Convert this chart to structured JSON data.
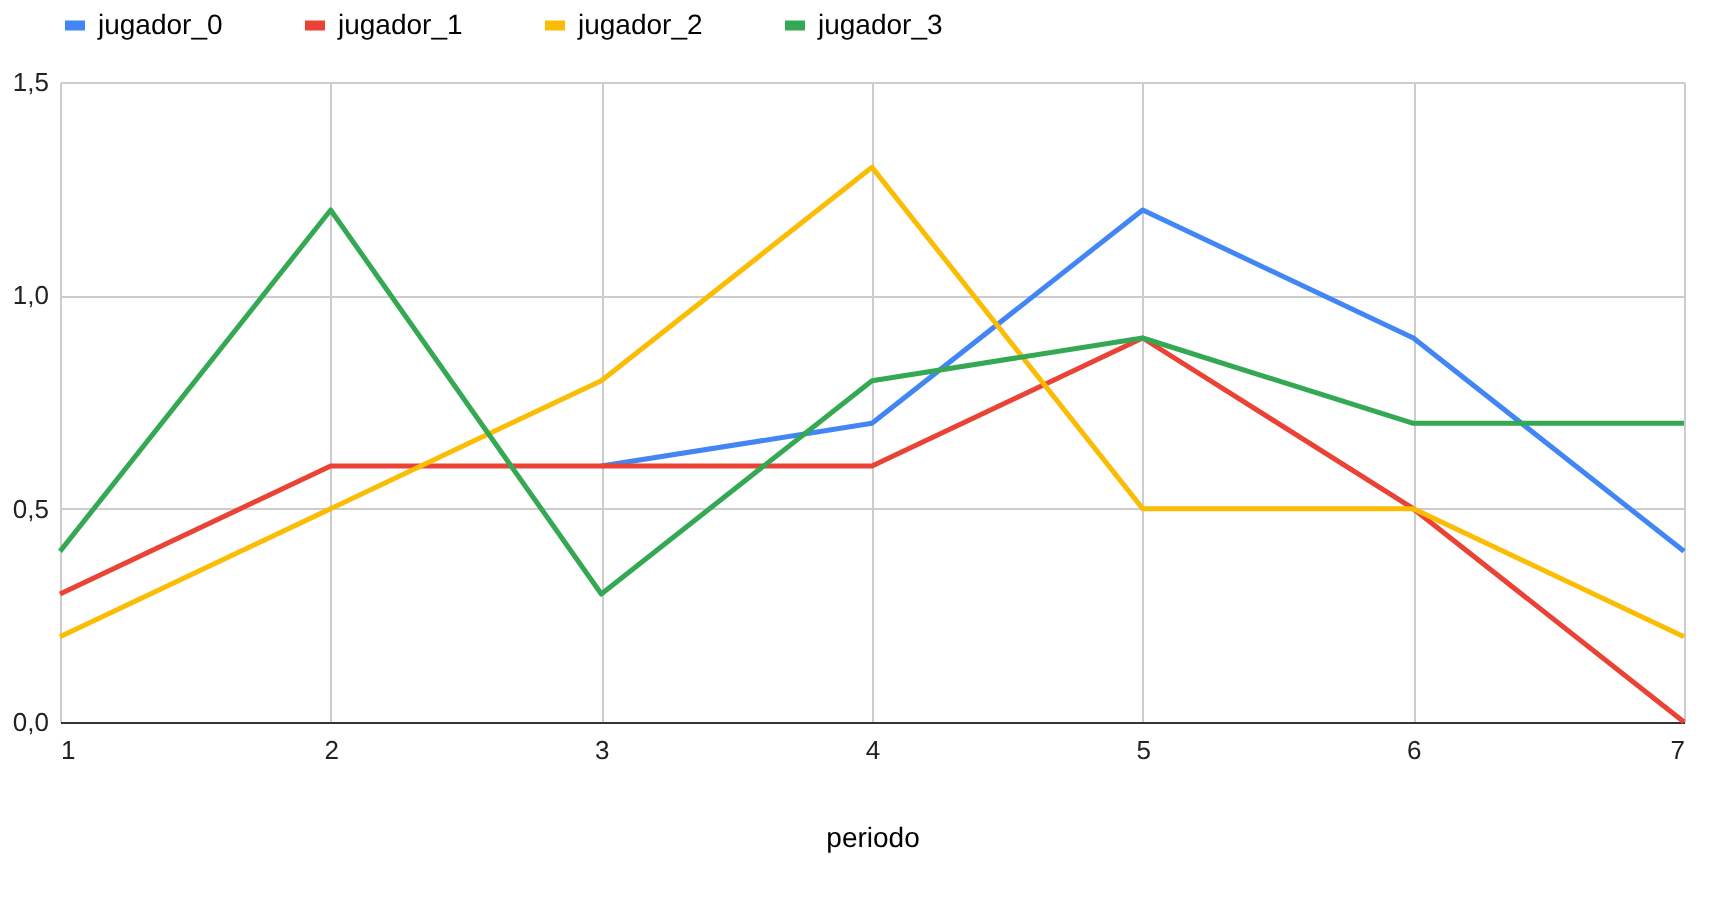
{
  "chart_data": {
    "type": "line",
    "xlabel": "periodo",
    "x": [
      1,
      2,
      3,
      4,
      5,
      6,
      7
    ],
    "series": [
      {
        "name": "jugador_0",
        "color": "#4285f4",
        "values": [
          null,
          null,
          0.6,
          0.7,
          1.2,
          0.9,
          0.4
        ]
      },
      {
        "name": "jugador_1",
        "color": "#ea4335",
        "values": [
          0.3,
          0.6,
          0.6,
          0.6,
          0.9,
          0.5,
          0.0
        ]
      },
      {
        "name": "jugador_2",
        "color": "#fbbc04",
        "values": [
          0.2,
          0.5,
          0.8,
          1.3,
          0.5,
          0.5,
          0.2
        ]
      },
      {
        "name": "jugador_3",
        "color": "#34a853",
        "values": [
          0.4,
          1.2,
          0.3,
          0.8,
          0.9,
          0.7,
          0.7
        ]
      }
    ],
    "xlim": [
      1,
      7
    ],
    "xticks": [
      1,
      2,
      3,
      4,
      5,
      6,
      7
    ],
    "ylim": [
      0,
      1.5
    ],
    "yticks": [
      {
        "value": 0,
        "label": "0,0"
      },
      {
        "value": 0.5,
        "label": "0,5"
      },
      {
        "value": 1,
        "label": "1,0"
      },
      {
        "value": 1.5,
        "label": "1,5"
      }
    ],
    "grid": true,
    "legend": "top",
    "marker": "none",
    "line_style": "solid"
  }
}
